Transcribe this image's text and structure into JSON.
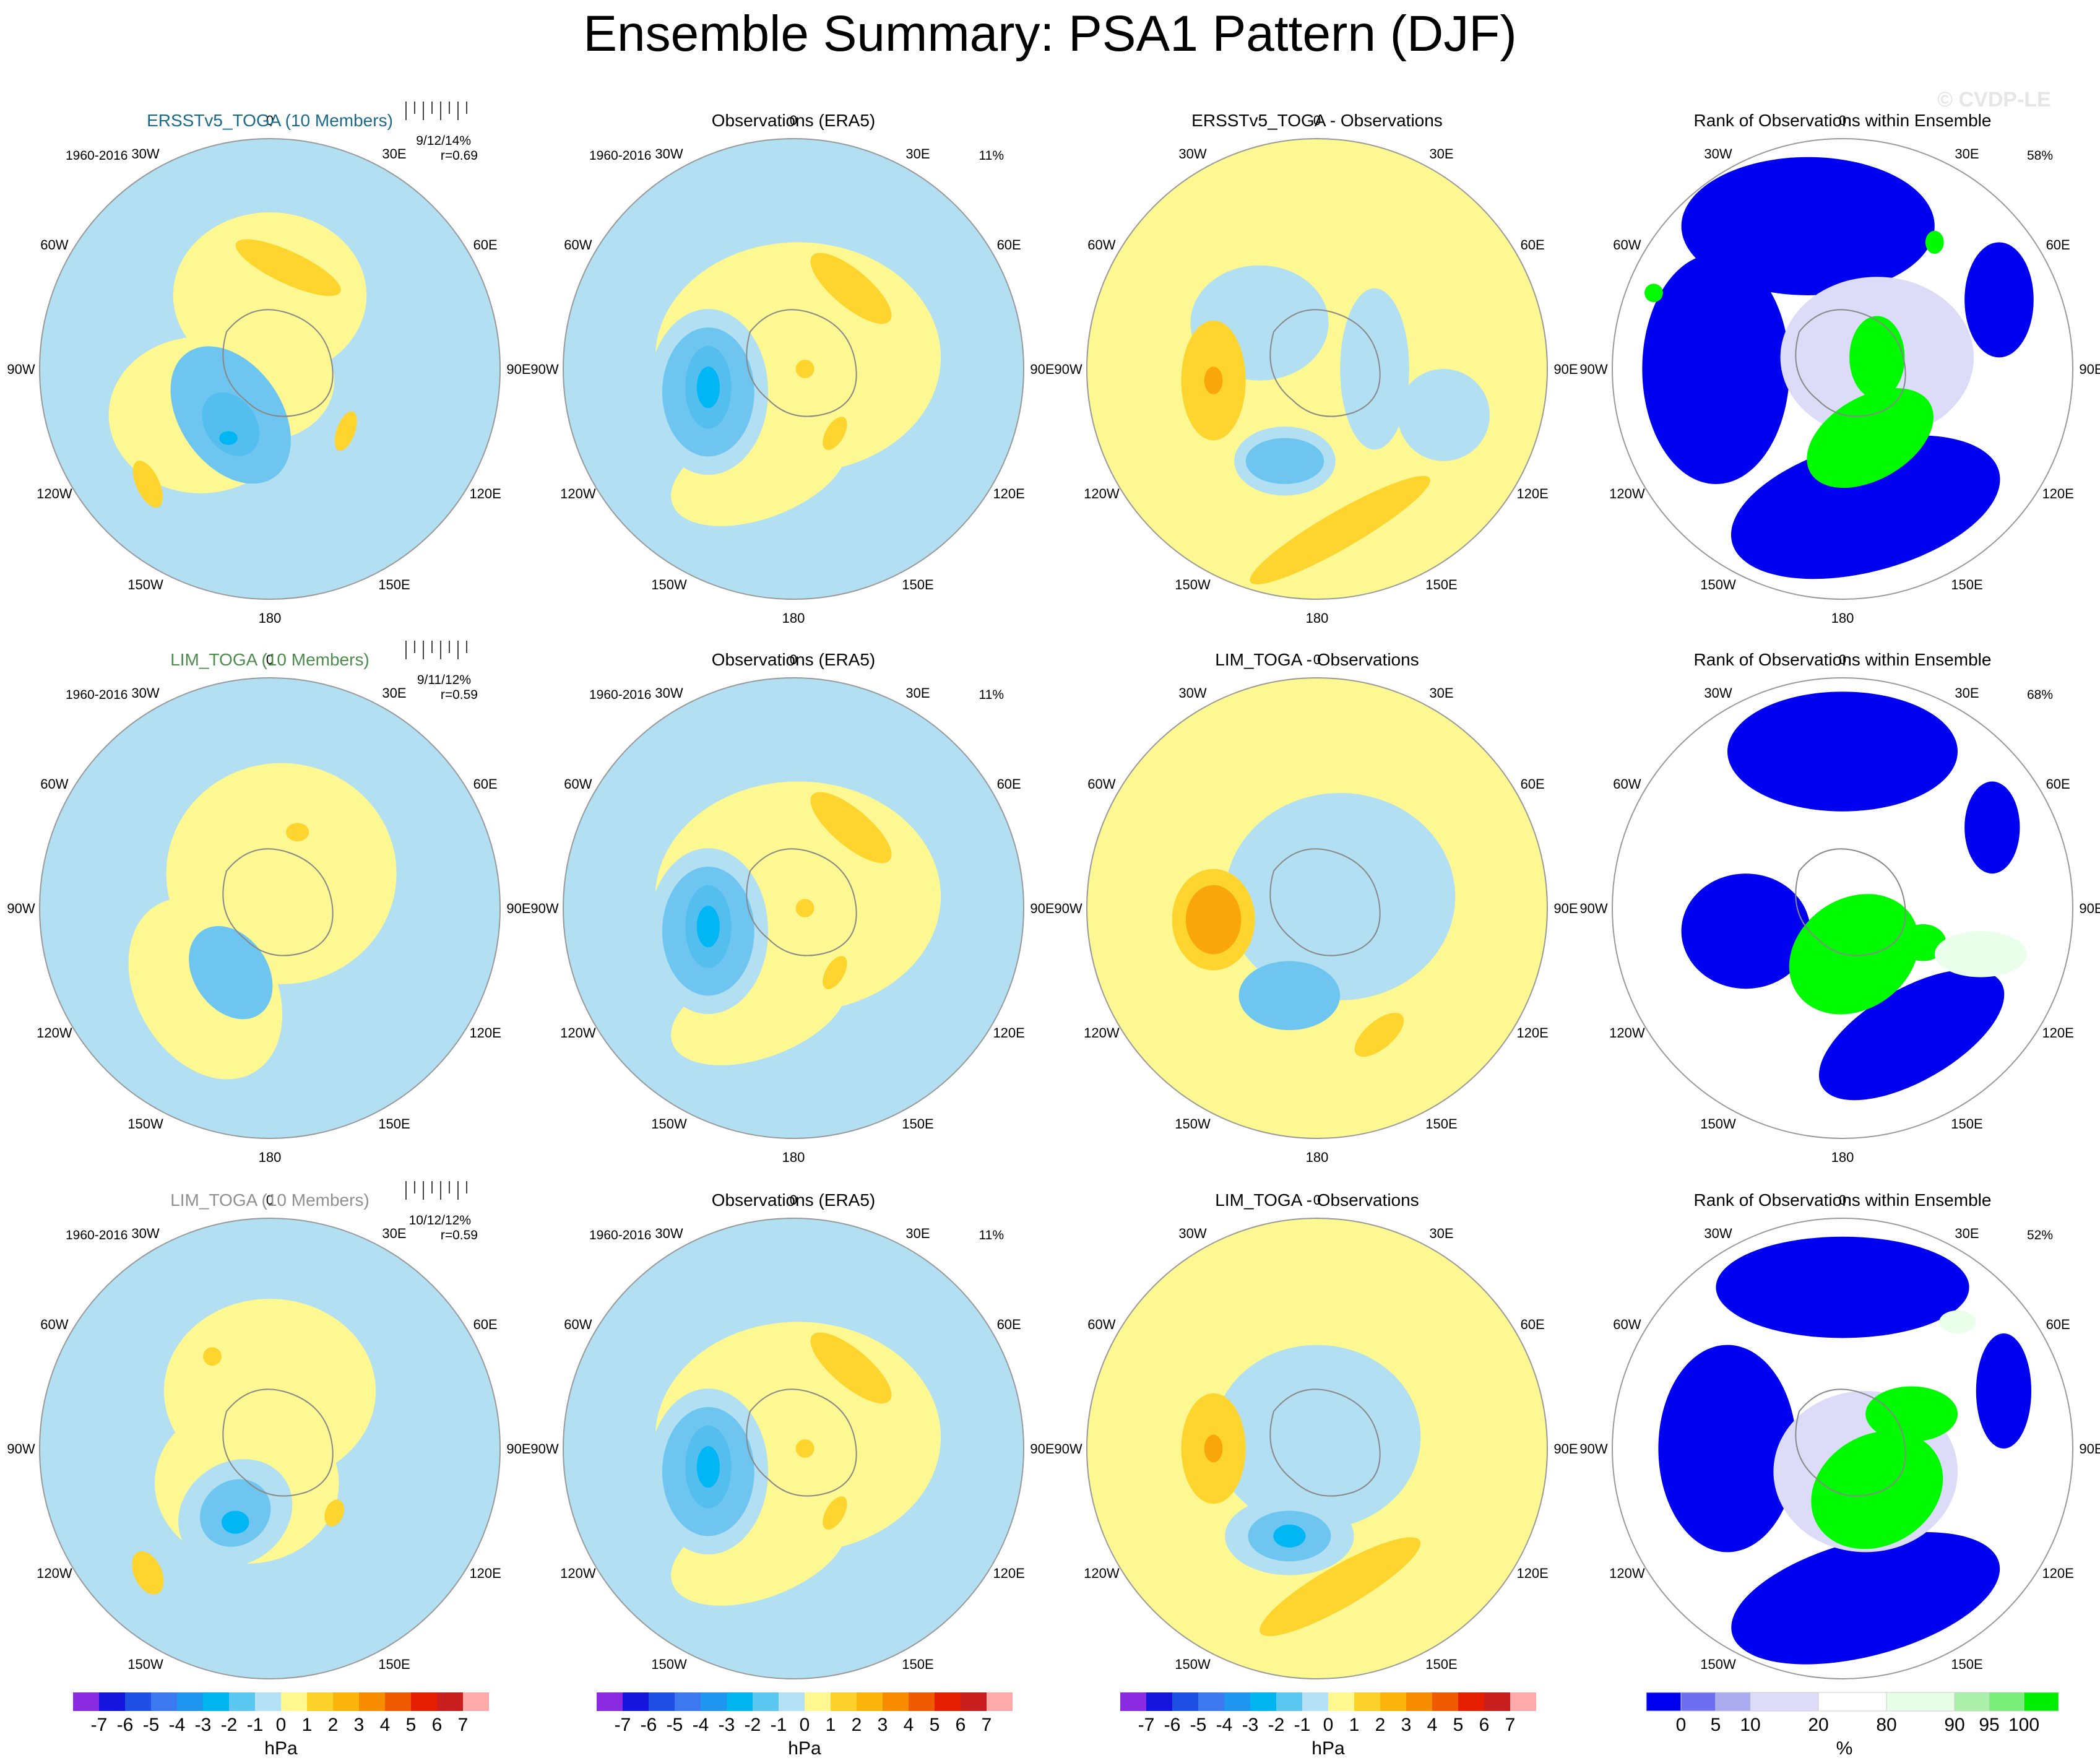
{
  "title": "Ensemble Summary: PSA1 Pattern (DJF)",
  "watermark": "© CVDP-LE",
  "colors": {
    "blue_m6": "#00b6f3",
    "blue_m3": "#00a6ef",
    "blue_m2": "#54bfef",
    "blue_m1": "#6ec6f0",
    "blue_light": "#b3dff3",
    "yellow": "#fdf891",
    "orange1": "#fed42e",
    "orange2": "#f9a60a",
    "rank_blue": "#0000f0",
    "rank_lav": "#dcdcf8",
    "rank_white": "#ffffff",
    "rank_lightgreen": "#eaffea",
    "rank_green": "#00fa00"
  },
  "rows": [
    {
      "model_title": "ERSSTv5_TOGA (10 Members)",
      "model_title_color": "#1a6a8a",
      "period": "1960-2016",
      "rank_stat": "9/12/14%",
      "corr": "r=0.69",
      "obs_title": "Observations (ERA5)",
      "obs_pct": "11%",
      "diff_title": "ERSSTv5_TOGA - Observations",
      "rank_title": "Rank of Observations within Ensemble",
      "rank_pct": "58%"
    },
    {
      "model_title": "LIM_TOGA (10 Members)",
      "model_title_color": "#4c8c4c",
      "period": "1960-2016",
      "rank_stat": "9/11/12%",
      "corr": "r=0.59",
      "obs_title": "Observations (ERA5)",
      "obs_pct": "11%",
      "diff_title": "LIM_TOGA - Observations",
      "rank_title": "Rank of Observations within Ensemble",
      "rank_pct": "68%"
    },
    {
      "model_title": "LIM_TOGA (10 Members)",
      "model_title_color": "#909090",
      "period": "1960-2016",
      "rank_stat": "10/12/12%",
      "corr": "r=0.59",
      "obs_title": "Observations (ERA5)",
      "obs_pct": "11%",
      "diff_title": "LIM_TOGA - Observations",
      "rank_title": "Rank of Observations within Ensemble",
      "rank_pct": "52%"
    }
  ],
  "chart_data": {
    "type": "polar contour map grid (south polar stereographic)",
    "variable": "PSA1 pattern sea level pressure (DJF)",
    "longitude_labels": [
      "0",
      "30E",
      "60E",
      "90E",
      "120E",
      "150E",
      "180",
      "150W",
      "120W",
      "90W",
      "60W",
      "30W"
    ],
    "colorbar_hpa": {
      "labels": [
        "-7",
        "-6",
        "-5",
        "-4",
        "-3",
        "-2",
        "-1",
        "0",
        "1",
        "2",
        "3",
        "4",
        "5",
        "6",
        "7"
      ],
      "units": "hPa",
      "colors": [
        "#8a2be2",
        "#1414dc",
        "#1e50e6",
        "#3c78f0",
        "#1e96f0",
        "#00b4f0",
        "#5ac8f0",
        "#b4e1f5",
        "#fff890",
        "#fcd22a",
        "#fab40a",
        "#f88c00",
        "#f05a00",
        "#e61e00",
        "#c81e1e",
        "#ffaaaa"
      ]
    },
    "colorbar_rank": {
      "labels": [
        "0",
        "5",
        "10",
        "20",
        "80",
        "90",
        "95",
        "100"
      ],
      "units": "%",
      "colors": [
        "#0000f0",
        "#6e6ef0",
        "#aaaaf0",
        "#dcdcf8",
        "#ffffff",
        "#e6ffe6",
        "#aaf0aa",
        "#78ee78",
        "#00ee00"
      ]
    }
  }
}
